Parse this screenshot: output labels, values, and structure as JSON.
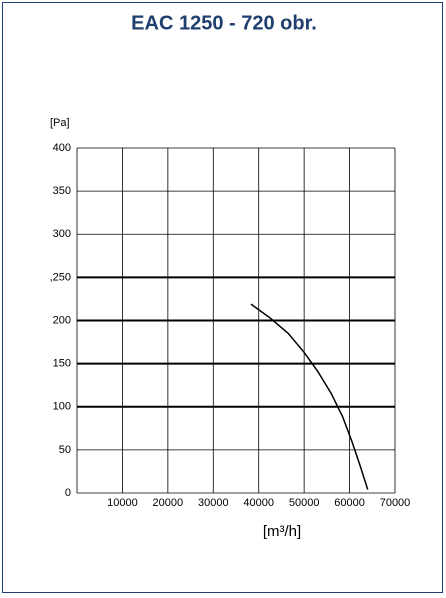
{
  "chart_data": {
    "type": "line",
    "title": "EAC 1250 - 720 obr.",
    "y_label": "[Pa]",
    "x_label": "[m³/h]",
    "x": [
      38300,
      42500,
      46500,
      50000,
      53000,
      56000,
      58500,
      60500,
      62300,
      64000
    ],
    "series": [
      {
        "color": "#000000",
        "values": [
          219,
          203,
          185,
          163,
          141,
          115,
          88,
          60,
          32,
          4
        ]
      }
    ],
    "xlim": [
      0,
      70000
    ],
    "xticks": [
      10000,
      20000,
      30000,
      40000,
      50000,
      60000,
      70000
    ],
    "ylim": [
      0,
      400
    ],
    "yticks": [
      0,
      50,
      100,
      150,
      {
        "value": 200,
        "label": "200"
      },
      {
        "value": 250,
        "label": ",250"
      },
      300,
      350,
      400
    ],
    "grid": true,
    "bold_grid_y": [
      100,
      150,
      200,
      250
    ]
  }
}
